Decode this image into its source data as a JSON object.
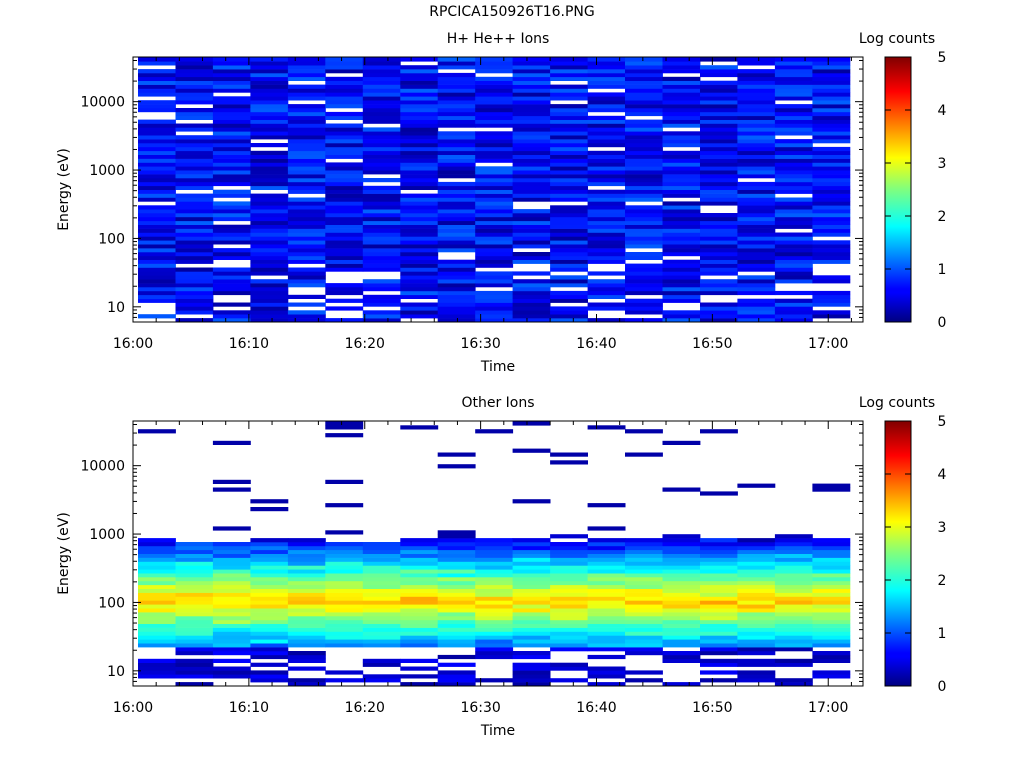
{
  "page_title": "RPCICA150926T16.PNG",
  "chart_data": [
    {
      "type": "heatmap",
      "title": "H+ He++ Ions",
      "xlabel": "Time",
      "ylabel": "Energy (eV)",
      "x_ticks": [
        "16:00",
        "16:10",
        "16:20",
        "16:30",
        "16:40",
        "16:50",
        "17:00"
      ],
      "x_range": [
        "16:00",
        "17:03"
      ],
      "y_scale": "log",
      "y_ticks": [
        "10",
        "100",
        "1000",
        "10000"
      ],
      "y_range": [
        6,
        45000
      ],
      "colorbar": {
        "label": "Log counts",
        "range": [
          0,
          5
        ],
        "ticks": [
          "0",
          "1",
          "2",
          "3",
          "4",
          "5"
        ]
      },
      "description_values": {
        "dominant_log_counts": "0.2–1.0 across 8 eV – 40 keV",
        "gaps": "white (no counts) in several bins, mostly below 40 eV"
      },
      "grid": false
    },
    {
      "type": "heatmap",
      "title": "Other Ions",
      "xlabel": "Time",
      "ylabel": "Energy (eV)",
      "x_ticks": [
        "16:00",
        "16:10",
        "16:20",
        "16:30",
        "16:40",
        "16:50",
        "17:00"
      ],
      "x_range": [
        "16:00",
        "17:03"
      ],
      "y_scale": "log",
      "y_ticks": [
        "10",
        "100",
        "1000",
        "10000"
      ],
      "y_range": [
        6,
        45000
      ],
      "colorbar": {
        "label": "Log counts",
        "range": [
          0,
          5
        ],
        "ticks": [
          "0",
          "1",
          "2",
          "3",
          "4",
          "5"
        ]
      },
      "description_values": {
        "main_band_eV": [
          20,
          800
        ],
        "peak_log_counts": 3.5,
        "peak_energy_eV": 100,
        "sparse_high_energy_log_counts": 0.2
      },
      "grid": false
    }
  ]
}
